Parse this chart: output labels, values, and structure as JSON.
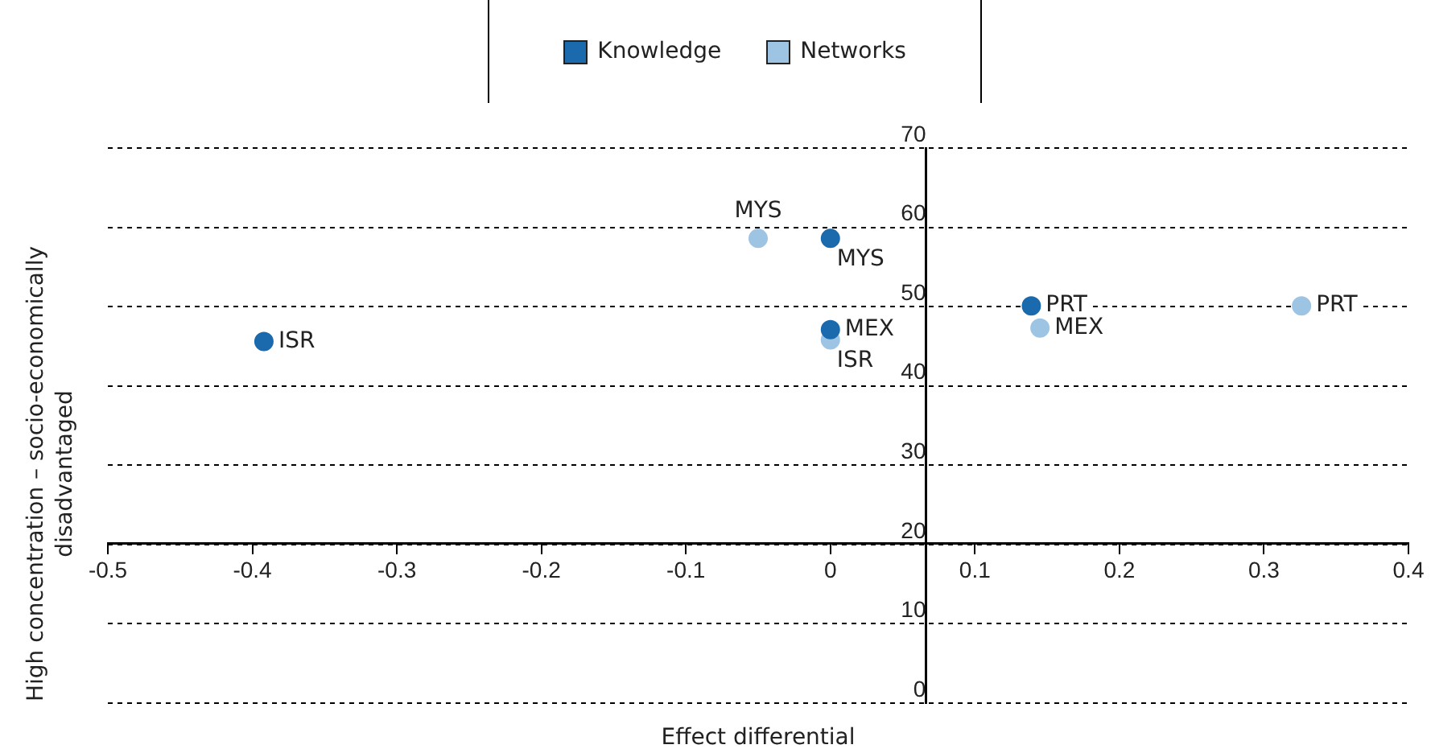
{
  "chart_data": {
    "type": "scatter",
    "xlabel": "Effect differential",
    "ylabel": "High concentration – socio-economically disadvantaged",
    "xlim": [
      -0.5,
      0.4
    ],
    "xticks": [
      -0.5,
      -0.4,
      -0.3,
      -0.2,
      -0.1,
      0,
      0.1,
      0.2,
      0.3,
      0.4
    ],
    "ylim": [
      0,
      70
    ],
    "yticks": [
      0,
      10,
      20,
      30,
      40,
      50,
      60,
      70
    ],
    "grid": "y",
    "legend": "top",
    "marker": "circle",
    "series": [
      {
        "name": "Knowledge",
        "color": "#1a6aad",
        "x": [
          -0.392,
          0,
          0,
          0.139
        ],
        "values": [
          45.6,
          58.6,
          47.1,
          50.1
        ]
      },
      {
        "name": "Networks",
        "color": "#9ec4e4",
        "x": [
          -0.05,
          0,
          0.145,
          0.326
        ],
        "values": [
          58.6,
          45.8,
          47.3,
          50.1
        ]
      }
    ],
    "annotations": [
      {
        "text": "ISR",
        "x": -0.392,
        "y": 45.6
      },
      {
        "text": "MYS",
        "x": 0,
        "y": 58.6
      },
      {
        "text": "MEX",
        "x": 0,
        "y": 47.1
      },
      {
        "text": "PRT",
        "x": 0.139,
        "y": 50.1
      },
      {
        "text": "MYS",
        "x": -0.05,
        "y": 58.6
      },
      {
        "text": "ISR",
        "x": 0,
        "y": 45.8
      },
      {
        "text": "MEX",
        "x": 0.145,
        "y": 47.3
      },
      {
        "text": "PRT",
        "x": 0.326,
        "y": 50.1
      }
    ]
  }
}
